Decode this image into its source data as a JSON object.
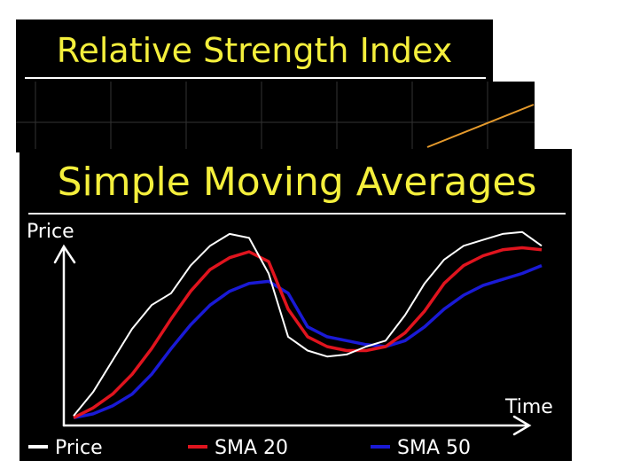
{
  "slide_behind": {
    "title": "Relative Strength Index"
  },
  "chart_data": {
    "type": "line",
    "title": "Simple Moving Averages",
    "x_label": "Time",
    "y_label": "Price",
    "x": [
      2,
      6,
      10,
      14,
      18,
      22,
      26,
      30,
      34,
      38,
      42,
      46,
      50,
      54,
      58,
      62,
      66,
      70,
      74,
      78,
      82,
      86,
      90,
      94,
      98
    ],
    "xlim": [
      0,
      100
    ],
    "ylim": [
      0,
      100
    ],
    "series": [
      {
        "name": "Price",
        "color": "#ffffff",
        "values": [
          4,
          16,
          32,
          48,
          60,
          66,
          80,
          90,
          96,
          94,
          76,
          44,
          37,
          34,
          35,
          39,
          42,
          55,
          71,
          83,
          90,
          93,
          96,
          97,
          90
        ]
      },
      {
        "name": "SMA 20",
        "color": "#e0141e",
        "values": [
          3,
          8,
          15,
          25,
          38,
          53,
          67,
          78,
          84,
          87,
          82,
          58,
          44,
          39,
          37,
          37,
          39,
          46,
          57,
          71,
          80,
          85,
          88,
          89,
          88
        ]
      },
      {
        "name": "SMA 50",
        "color": "#1a1ad6",
        "values": [
          3,
          5,
          9,
          15,
          25,
          38,
          50,
          60,
          67,
          71,
          72,
          66,
          49,
          44,
          42,
          40,
          39,
          42,
          49,
          58,
          65,
          70,
          73,
          76,
          80
        ]
      }
    ]
  }
}
